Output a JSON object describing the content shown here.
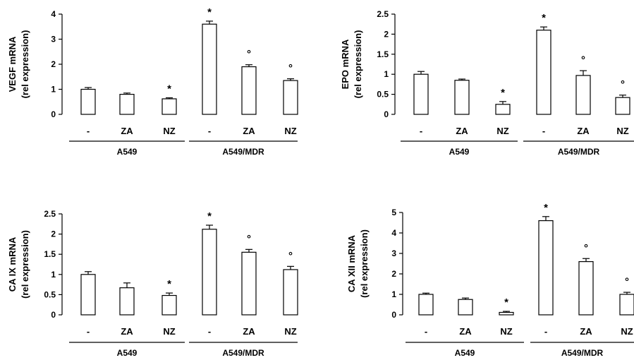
{
  "chart_data": [
    {
      "type": "bar",
      "ylabel_line1": "VEGF mRNA",
      "ylabel_line2": "(rel expression)",
      "ylim": [
        0,
        4
      ],
      "yticks": [
        "0",
        "1",
        "2",
        "3",
        "4"
      ],
      "ytick_values": [
        0,
        1,
        2,
        3,
        4
      ],
      "categories": [
        "-",
        "ZA",
        "NZ",
        "-",
        "ZA",
        "NZ"
      ],
      "groups": [
        "A549",
        "A549/MDR"
      ],
      "values": [
        1.0,
        0.8,
        0.62,
        3.6,
        1.9,
        1.35
      ],
      "errors": [
        0.07,
        0.05,
        0.04,
        0.12,
        0.08,
        0.07
      ],
      "markers": [
        "",
        "",
        "*",
        "*",
        "°",
        "°"
      ]
    },
    {
      "type": "bar",
      "ylabel_line1": "EPO mRNA",
      "ylabel_line2": "(rel expression)",
      "ylim": [
        0,
        2.5
      ],
      "yticks": [
        "0",
        "0.5",
        "1",
        "1.5",
        "2",
        "2.5"
      ],
      "ytick_values": [
        0,
        0.5,
        1,
        1.5,
        2,
        2.5
      ],
      "categories": [
        "-",
        "ZA",
        "NZ",
        "-",
        "ZA",
        "NZ"
      ],
      "groups": [
        "A549",
        "A549/MDR"
      ],
      "values": [
        1.0,
        0.85,
        0.25,
        2.1,
        0.97,
        0.42
      ],
      "errors": [
        0.07,
        0.03,
        0.07,
        0.08,
        0.12,
        0.06
      ],
      "markers": [
        "",
        "",
        "*",
        "*",
        "°",
        "°"
      ]
    },
    {
      "type": "bar",
      "ylabel_line1": "CA IX mRNA",
      "ylabel_line2": "(rel expression)",
      "ylim": [
        0,
        2.5
      ],
      "yticks": [
        "0",
        "0.5",
        "1",
        "1.5",
        "2",
        "2.5"
      ],
      "ytick_values": [
        0,
        0.5,
        1,
        1.5,
        2,
        2.5
      ],
      "categories": [
        "-",
        "ZA",
        "NZ",
        "-",
        "ZA",
        "NZ"
      ],
      "groups": [
        "A549",
        "A549/MDR"
      ],
      "values": [
        1.0,
        0.67,
        0.48,
        2.12,
        1.55,
        1.12
      ],
      "errors": [
        0.07,
        0.12,
        0.06,
        0.1,
        0.07,
        0.08
      ],
      "markers": [
        "",
        "",
        "*",
        "*",
        "°",
        "°"
      ]
    },
    {
      "type": "bar",
      "ylabel_line1": "CA XII mRNA",
      "ylabel_line2": "(rel expression)",
      "ylim": [
        0,
        5
      ],
      "yticks": [
        "0",
        "1",
        "2",
        "3",
        "4",
        "5"
      ],
      "ytick_values": [
        0,
        1,
        2,
        3,
        4,
        5
      ],
      "categories": [
        "-",
        "ZA",
        "NZ",
        "-",
        "ZA",
        "NZ"
      ],
      "groups": [
        "A549",
        "A549/MDR"
      ],
      "values": [
        1.0,
        0.75,
        0.12,
        4.6,
        2.6,
        1.0
      ],
      "errors": [
        0.06,
        0.07,
        0.05,
        0.2,
        0.15,
        0.1
      ],
      "markers": [
        "",
        "",
        "*",
        "*",
        "°",
        "°"
      ]
    }
  ]
}
